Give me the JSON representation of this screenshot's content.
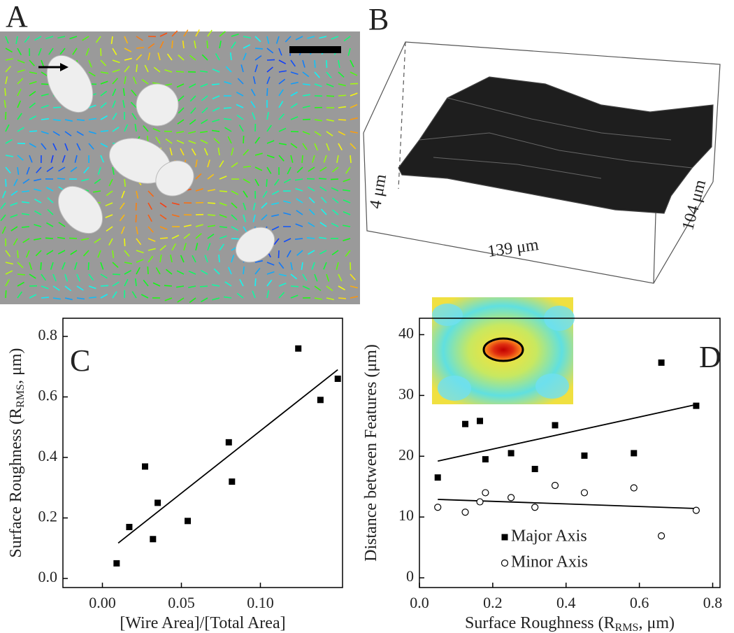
{
  "panel_a": {
    "label": "A"
  },
  "panel_b": {
    "label": "B",
    "height_label": "4 μm",
    "length_label": "139 μm",
    "width_label": "104 μm"
  },
  "chart_data": [
    {
      "type": "scatter",
      "label": "C",
      "xlabel": "[Wire Area]/[Total Area]",
      "ylabel": [
        "Surface Roughness (R",
        "RMS",
        ", μm)"
      ],
      "xlim": [
        -0.025,
        0.152
      ],
      "ylim": [
        -0.03,
        0.86
      ],
      "xticks": [
        {
          "value": 0,
          "label": "0.00"
        },
        {
          "value": 0.05,
          "label": "0.05"
        },
        {
          "value": 0.1,
          "label": "0.10"
        }
      ],
      "yticks": [
        {
          "value": 0,
          "label": "0.0"
        },
        {
          "value": 0.2,
          "label": "0.2"
        },
        {
          "value": 0.4,
          "label": "0.4"
        },
        {
          "value": 0.6,
          "label": "0.6"
        },
        {
          "value": 0.8,
          "label": "0.8"
        }
      ],
      "series": [
        {
          "color": "#000000",
          "marker": "square",
          "x": [
            0.009,
            0.017,
            0.027,
            0.035,
            0.032,
            0.054,
            0.08,
            0.082,
            0.124,
            0.138,
            0.149
          ],
          "values": [
            0.05,
            0.17,
            0.37,
            0.25,
            0.13,
            0.19,
            0.45,
            0.32,
            0.76,
            0.59,
            0.66
          ]
        }
      ],
      "fit": {
        "x": [
          0.01,
          0.149
        ],
        "y": [
          0.117,
          0.69
        ]
      }
    },
    {
      "type": "scatter",
      "label": "D",
      "xlabel": [
        "Surface Roughness  (R",
        "RMS",
        ", μm)"
      ],
      "ylabel": "Distance between Features (μm)",
      "xlim": [
        0,
        0.82
      ],
      "ylim": [
        -1.6,
        42.7
      ],
      "xticks": [
        {
          "value": 0,
          "label": "0.0"
        },
        {
          "value": 0.2,
          "label": "0.2"
        },
        {
          "value": 0.4,
          "label": "0.4"
        },
        {
          "value": 0.6,
          "label": "0.6"
        },
        {
          "value": 0.8,
          "label": "0.8"
        }
      ],
      "yticks": [
        0,
        10,
        20,
        30,
        40
      ],
      "series": [
        {
          "name": "Major Axis",
          "color": "#000000",
          "marker": "square",
          "x": [
            0.05,
            0.125,
            0.165,
            0.18,
            0.25,
            0.315,
            0.37,
            0.45,
            0.585,
            0.66,
            0.755
          ],
          "values": [
            16.5,
            25.3,
            25.8,
            19.5,
            20.5,
            17.9,
            25.1,
            20.1,
            20.5,
            35.4,
            28.3
          ]
        },
        {
          "name": "Minor Axis",
          "color": "#000000",
          "marker": "circle",
          "x": [
            0.05,
            0.125,
            0.165,
            0.18,
            0.25,
            0.315,
            0.37,
            0.45,
            0.585,
            0.66,
            0.755
          ],
          "values": [
            11.6,
            10.8,
            12.5,
            14.0,
            13.2,
            11.6,
            15.2,
            14.0,
            14.8,
            6.9,
            11.1
          ]
        }
      ],
      "fit": [
        {
          "x": [
            0.05,
            0.755
          ],
          "y": [
            19.2,
            28.5
          ]
        },
        {
          "x": [
            0.05,
            0.755
          ],
          "y": [
            12.9,
            11.4
          ]
        }
      ]
    }
  ]
}
